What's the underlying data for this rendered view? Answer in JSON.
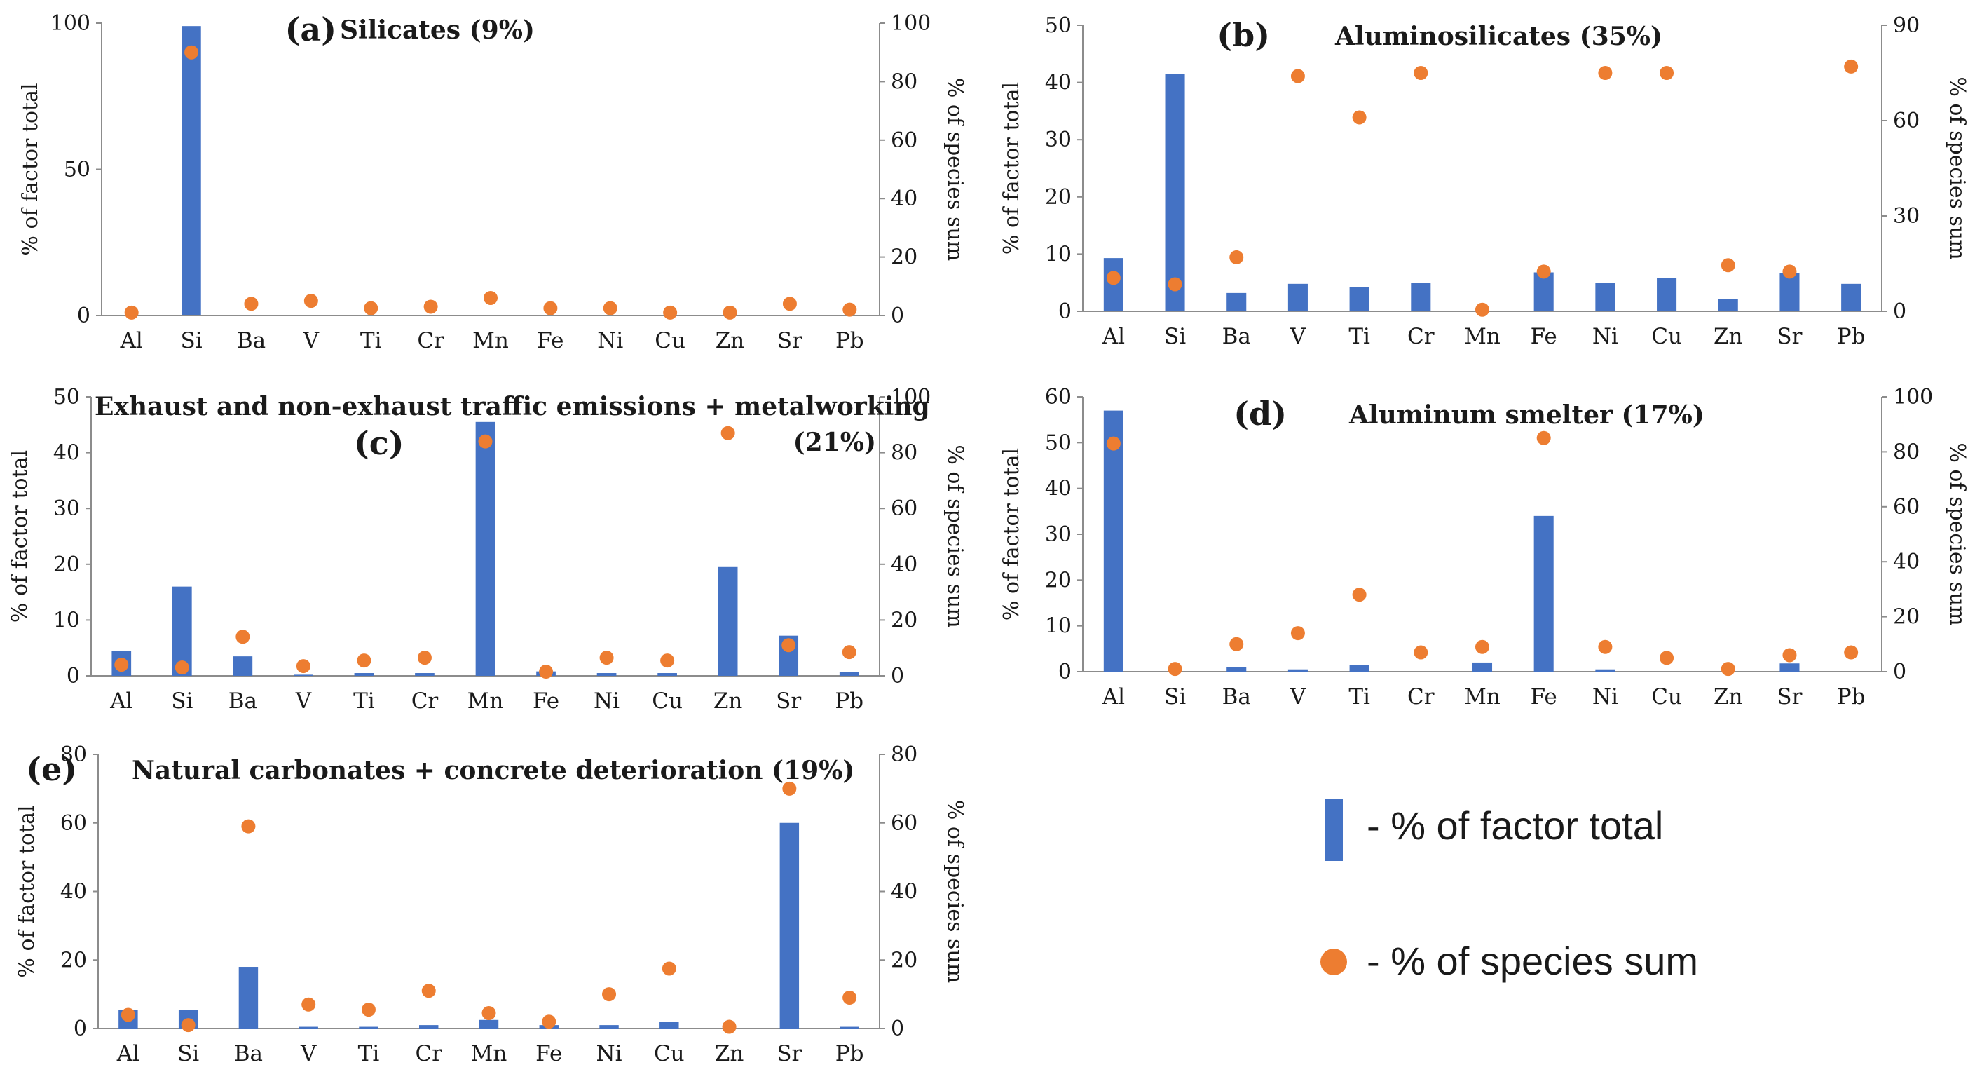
{
  "colors": {
    "bar": "#4472C4",
    "dot": "#ED7D31",
    "axis": "#8c8c8c"
  },
  "legend": {
    "bar_label": "- % of factor total",
    "dot_label": "- % of species sum"
  },
  "chart_data": [
    {
      "type": "bar",
      "letter": "(a)",
      "title": "Silicates (9%)",
      "categories": [
        "Al",
        "Si",
        "Ba",
        "V",
        "Ti",
        "Cr",
        "Mn",
        "Fe",
        "Ni",
        "Cu",
        "Zn",
        "Sr",
        "Pb"
      ],
      "ylabel": "% of factor total",
      "y2label": "% of species sum",
      "ylim": [
        0,
        100
      ],
      "yticks": [
        0,
        50,
        100
      ],
      "y2lim": [
        0,
        100
      ],
      "y2ticks": [
        0,
        20,
        40,
        60,
        80,
        100
      ],
      "series": [
        {
          "name": "% of factor total",
          "axis": "left",
          "style": "bar",
          "values": [
            0,
            99,
            0,
            0,
            0,
            0,
            0,
            0,
            0,
            0,
            0,
            0,
            0
          ]
        },
        {
          "name": "% of species sum",
          "axis": "right",
          "style": "dot",
          "values": [
            1,
            90,
            4,
            5,
            2.5,
            3,
            6,
            2.5,
            2.5,
            1,
            1,
            4,
            2
          ]
        }
      ]
    },
    {
      "type": "bar",
      "letter": "(b)",
      "title": "Aluminosilicates (35%)",
      "categories": [
        "Al",
        "Si",
        "Ba",
        "V",
        "Ti",
        "Cr",
        "Mn",
        "Fe",
        "Ni",
        "Cu",
        "Zn",
        "Sr",
        "Pb"
      ],
      "ylabel": "% of factor total",
      "y2label": "% of species sum",
      "ylim": [
        0,
        50
      ],
      "yticks": [
        0,
        10,
        20,
        30,
        40,
        50
      ],
      "y2lim": [
        0,
        90
      ],
      "y2ticks": [
        0,
        30,
        60,
        90
      ],
      "series": [
        {
          "name": "% of factor total",
          "axis": "left",
          "style": "bar",
          "values": [
            9.3,
            41.5,
            3.2,
            4.8,
            4.2,
            5,
            0,
            6.8,
            5,
            5.8,
            2.2,
            6.7,
            4.8
          ]
        },
        {
          "name": "% of species sum",
          "axis": "right",
          "style": "dot",
          "values": [
            10.5,
            8.5,
            17,
            74,
            61,
            75,
            0.5,
            12.5,
            75,
            75,
            14.5,
            12.5,
            77
          ]
        }
      ]
    },
    {
      "type": "bar",
      "letter": "(c)",
      "title": "Exhaust and non-exhaust traffic emissions + metalworking",
      "title_suffix": "(21%)",
      "categories": [
        "Al",
        "Si",
        "Ba",
        "V",
        "Ti",
        "Cr",
        "Mn",
        "Fe",
        "Ni",
        "Cu",
        "Zn",
        "Sr",
        "Pb"
      ],
      "ylabel": "% of factor total",
      "y2label": "% of species sum",
      "ylim": [
        0,
        50
      ],
      "yticks": [
        0,
        10,
        20,
        30,
        40,
        50
      ],
      "y2lim": [
        0,
        100
      ],
      "y2ticks": [
        0,
        20,
        40,
        60,
        80,
        100
      ],
      "series": [
        {
          "name": "% of factor total",
          "axis": "left",
          "style": "bar",
          "values": [
            4.5,
            16,
            3.5,
            0.2,
            0.5,
            0.5,
            45.5,
            0.8,
            0.5,
            0.5,
            19.5,
            7.2,
            0.7
          ]
        },
        {
          "name": "% of species sum",
          "axis": "right",
          "style": "dot",
          "values": [
            4,
            3,
            14,
            3.5,
            5.5,
            6.5,
            84,
            1.5,
            6.5,
            5.5,
            87,
            11,
            8.5
          ]
        }
      ]
    },
    {
      "type": "bar",
      "letter": "(d)",
      "title": "Aluminum  smelter (17%)",
      "categories": [
        "Al",
        "Si",
        "Ba",
        "V",
        "Ti",
        "Cr",
        "Mn",
        "Fe",
        "Ni",
        "Cu",
        "Zn",
        "Sr",
        "Pb"
      ],
      "ylabel": "% of factor total",
      "y2label": "% of species sum",
      "ylim": [
        0,
        60
      ],
      "yticks": [
        0,
        10,
        20,
        30,
        40,
        50,
        60
      ],
      "y2lim": [
        0,
        100
      ],
      "y2ticks": [
        0,
        20,
        40,
        60,
        80,
        100
      ],
      "series": [
        {
          "name": "% of factor total",
          "axis": "left",
          "style": "bar",
          "values": [
            57,
            0,
            1,
            0.5,
            1.5,
            0,
            2,
            34,
            0.5,
            0,
            0,
            1.8,
            0
          ]
        },
        {
          "name": "% of species sum",
          "axis": "right",
          "style": "dot",
          "values": [
            83,
            1,
            10,
            14,
            28,
            7,
            9,
            85,
            9,
            5,
            1,
            6,
            7
          ]
        }
      ]
    },
    {
      "type": "bar",
      "letter": "(e)",
      "title": "Natural carbonates + concrete deterioration  (19%)",
      "categories": [
        "Al",
        "Si",
        "Ba",
        "V",
        "Ti",
        "Cr",
        "Mn",
        "Fe",
        "Ni",
        "Cu",
        "Zn",
        "Sr",
        "Pb"
      ],
      "ylabel": "% of factor total",
      "y2label": "% of species sum",
      "ylim": [
        0,
        80
      ],
      "yticks": [
        0,
        20,
        40,
        60,
        80
      ],
      "y2lim": [
        0,
        80
      ],
      "y2ticks": [
        0,
        20,
        40,
        60,
        80
      ],
      "series": [
        {
          "name": "% of factor total",
          "axis": "left",
          "style": "bar",
          "values": [
            5.5,
            5.5,
            18,
            0.5,
            0.5,
            1,
            2.5,
            1,
            1,
            2,
            0,
            60,
            0.5
          ]
        },
        {
          "name": "% of species sum",
          "axis": "right",
          "style": "dot",
          "values": [
            4,
            1,
            59,
            7,
            5.5,
            11,
            4.5,
            2,
            10,
            17.5,
            0.5,
            70,
            9
          ]
        }
      ]
    }
  ]
}
